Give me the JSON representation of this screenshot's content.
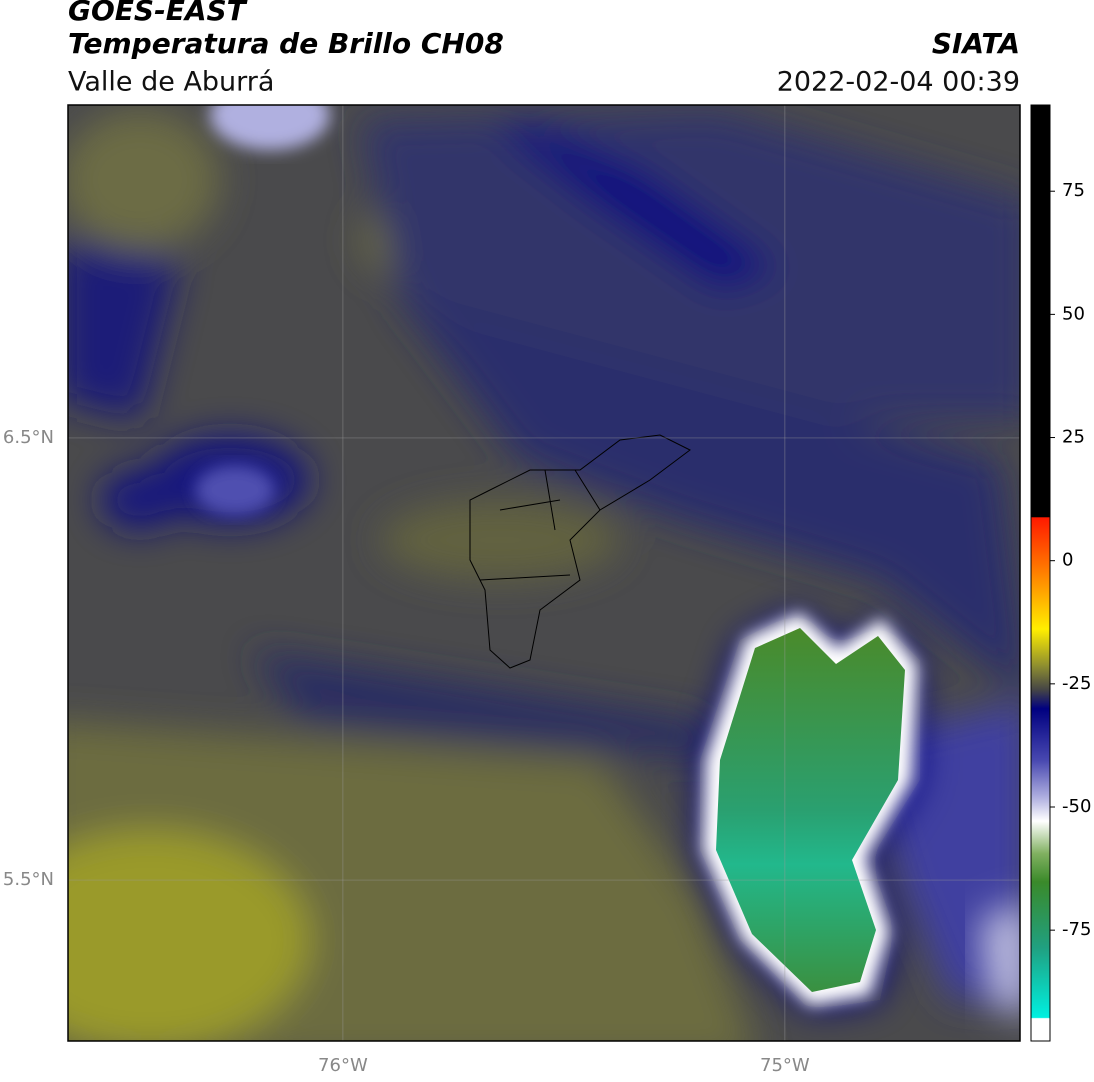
{
  "title": "GOES-EAST",
  "subtitle": "Temperatura de Brillo CH08",
  "region": "Valle de Aburrá",
  "source": "SIATA",
  "datetime": "2022-02-04 00:39",
  "map": {
    "xlim": [
      -76.622,
      -74.468
    ],
    "ylim": [
      5.136,
      7.253
    ],
    "xticks": [
      {
        "value": -76,
        "label": "76°W"
      },
      {
        "value": -75,
        "label": "75°W"
      }
    ],
    "yticks": [
      {
        "value": 6.5,
        "label": "6.5°N"
      },
      {
        "value": 5.5,
        "label": "5.5°N"
      }
    ],
    "grid": true
  },
  "colorbar": {
    "lim": [
      -97.5,
      92.5
    ],
    "ticks": [
      75,
      50,
      25,
      0,
      -25,
      -50,
      -75
    ]
  }
}
